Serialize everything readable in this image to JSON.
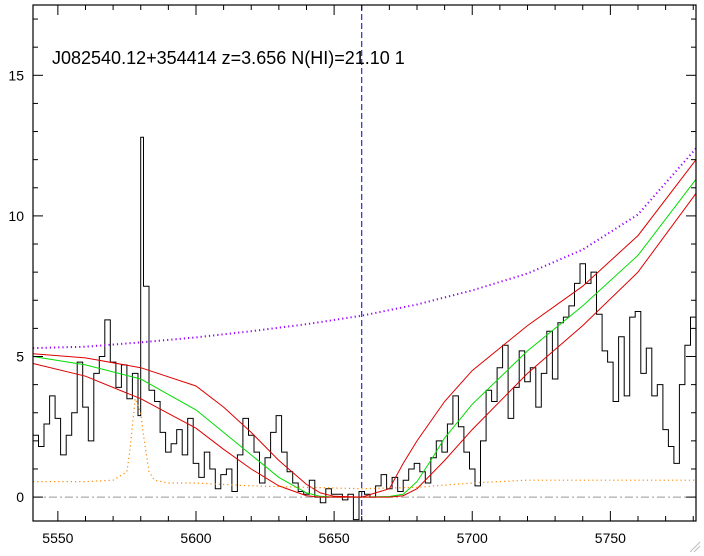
{
  "chart_data": {
    "type": "line",
    "title": "J082540.12+354414 z=3.656 N(HI)=21.10 1",
    "xlabel": "",
    "ylabel": "",
    "xlim": [
      5541,
      5781
    ],
    "ylim": [
      -0.85,
      17.5
    ],
    "xticks": [
      5550,
      5600,
      5650,
      5700,
      5750
    ],
    "xtick_labels": [
      "5550",
      "5600",
      "5650",
      "5700",
      "5750"
    ],
    "yticks": [
      0,
      5,
      10,
      15
    ],
    "ytick_labels": [
      "0",
      "5",
      "10",
      "15"
    ],
    "grid": false,
    "legend": "none",
    "vline_x": 5660,
    "hline_y": 0,
    "colors": {
      "flux": "#000000",
      "model": "#00dd00",
      "model_bounds": "#dd0000",
      "continuum": "#9900ff",
      "error": "#ff8800",
      "marker": "#0000cc",
      "zero": "#999999"
    },
    "series": [
      {
        "key": "flux",
        "style": "step",
        "x": [
          5541,
          5543,
          5545,
          5547,
          5549,
          5551,
          5553,
          5555,
          5557,
          5559,
          5561,
          5563,
          5565,
          5567,
          5569,
          5571,
          5573,
          5575,
          5577,
          5579,
          5580,
          5581,
          5583,
          5585,
          5587,
          5589,
          5591,
          5593,
          5595,
          5597,
          5599,
          5601,
          5603,
          5605,
          5607,
          5609,
          5611,
          5613,
          5615,
          5617,
          5619,
          5621,
          5623,
          5625,
          5627,
          5629,
          5631,
          5633,
          5635,
          5637,
          5639,
          5641,
          5643,
          5645,
          5647,
          5649,
          5651,
          5653,
          5655,
          5657,
          5659,
          5661,
          5663,
          5665,
          5667,
          5669,
          5671,
          5673,
          5675,
          5677,
          5679,
          5681,
          5683,
          5685,
          5687,
          5689,
          5691,
          5693,
          5695,
          5697,
          5699,
          5701,
          5703,
          5705,
          5707,
          5709,
          5711,
          5713,
          5715,
          5717,
          5719,
          5721,
          5723,
          5725,
          5727,
          5729,
          5731,
          5733,
          5735,
          5737,
          5739,
          5741,
          5743,
          5745,
          5747,
          5749,
          5751,
          5753,
          5755,
          5757,
          5759,
          5761,
          5763,
          5765,
          5767,
          5769,
          5771,
          5773,
          5775,
          5777,
          5779,
          5781
        ],
        "y": [
          2.2,
          1.8,
          2.6,
          3.6,
          2.8,
          1.5,
          2.2,
          3.0,
          4.8,
          3.2,
          2.0,
          4.4,
          5.0,
          6.3,
          4.8,
          3.9,
          4.7,
          3.5,
          4.4,
          2.9,
          12.8,
          7.5,
          3.8,
          3.4,
          2.3,
          1.6,
          1.9,
          2.4,
          1.5,
          2.8,
          1.2,
          0.7,
          1.6,
          1.0,
          0.3,
          0.8,
          1.0,
          0.2,
          1.5,
          2.8,
          2.2,
          1.6,
          0.5,
          1.4,
          2.3,
          2.9,
          1.6,
          0.9,
          0.5,
          0.2,
          0.1,
          0.6,
          0.0,
          -0.2,
          0.3,
          0.1,
          0.1,
          -0.1,
          0.1,
          -0.8,
          0.2,
          0.1,
          0.0,
          0.4,
          0.8,
          0.3,
          0.7,
          0.2,
          0.6,
          1.0,
          1.2,
          0.9,
          0.5,
          1.4,
          2.0,
          1.6,
          2.6,
          3.6,
          2.5,
          1.6,
          1.0,
          0.4,
          2.0,
          3.8,
          3.4,
          4.6,
          5.4,
          2.8,
          3.9,
          5.2,
          4.1,
          4.6,
          3.2,
          4.4,
          5.9,
          4.2,
          6.2,
          6.4,
          6.8,
          7.6,
          8.3,
          7.6,
          8.0,
          6.5,
          5.2,
          4.8,
          3.4,
          5.7,
          3.6,
          6.4,
          6.6,
          4.4,
          5.3,
          3.6,
          4.0,
          2.4,
          1.8,
          1.2,
          4.0,
          5.4,
          6.4,
          1.1
        ]
      },
      {
        "key": "continuum",
        "style": "dotted",
        "x": [
          5541,
          5560,
          5580,
          5600,
          5620,
          5640,
          5660,
          5680,
          5700,
          5720,
          5740,
          5760,
          5781
        ],
        "y": [
          5.3,
          5.35,
          5.5,
          5.68,
          5.9,
          6.15,
          6.45,
          6.85,
          7.35,
          7.95,
          8.8,
          10.05,
          12.4
        ]
      },
      {
        "key": "model",
        "style": "line",
        "x": [
          5541,
          5560,
          5580,
          5600,
          5610,
          5620,
          5630,
          5640,
          5645,
          5650,
          5660,
          5670,
          5675,
          5680,
          5685,
          5690,
          5700,
          5720,
          5740,
          5760,
          5781
        ],
        "y": [
          5.0,
          4.7,
          4.2,
          3.1,
          2.3,
          1.5,
          0.7,
          0.15,
          0.03,
          0.0,
          0.0,
          0.02,
          0.1,
          0.55,
          1.3,
          2.1,
          3.3,
          5.2,
          6.8,
          8.6,
          11.3
        ]
      },
      {
        "key": "model_bounds",
        "style": "line",
        "x": [
          5541,
          5560,
          5580,
          5600,
          5610,
          5620,
          5630,
          5640,
          5645,
          5650,
          5660,
          5670,
          5675,
          5680,
          5690,
          5700,
          5720,
          5740,
          5760,
          5781
        ],
        "y": [
          5.1,
          4.95,
          4.6,
          3.95,
          3.2,
          2.3,
          1.3,
          0.45,
          0.15,
          0.03,
          0.0,
          0.3,
          1.2,
          2.0,
          3.4,
          4.5,
          6.1,
          7.5,
          9.3,
          12.0
        ]
      },
      {
        "key": "model_bounds",
        "style": "line",
        "x": [
          5541,
          5560,
          5580,
          5600,
          5610,
          5620,
          5630,
          5640,
          5645,
          5650,
          5660,
          5670,
          5675,
          5680,
          5690,
          5700,
          5720,
          5740,
          5760,
          5781
        ],
        "y": [
          4.75,
          4.3,
          3.5,
          2.45,
          1.7,
          1.0,
          0.4,
          0.05,
          0.0,
          0.0,
          0.0,
          0.0,
          0.05,
          0.3,
          1.3,
          2.4,
          4.4,
          6.1,
          8.0,
          10.8
        ]
      },
      {
        "key": "error",
        "style": "dotted",
        "x": [
          5541,
          5550,
          5560,
          5570,
          5575,
          5576,
          5578,
          5580,
          5581,
          5583,
          5585,
          5590,
          5600,
          5620,
          5640,
          5660,
          5680,
          5700,
          5720,
          5740,
          5760,
          5781
        ],
        "y": [
          0.55,
          0.55,
          0.55,
          0.6,
          0.9,
          1.6,
          3.5,
          3.0,
          2.2,
          0.9,
          0.6,
          0.5,
          0.5,
          0.4,
          0.35,
          0.3,
          0.35,
          0.5,
          0.6,
          0.6,
          0.6,
          0.6
        ]
      }
    ]
  }
}
